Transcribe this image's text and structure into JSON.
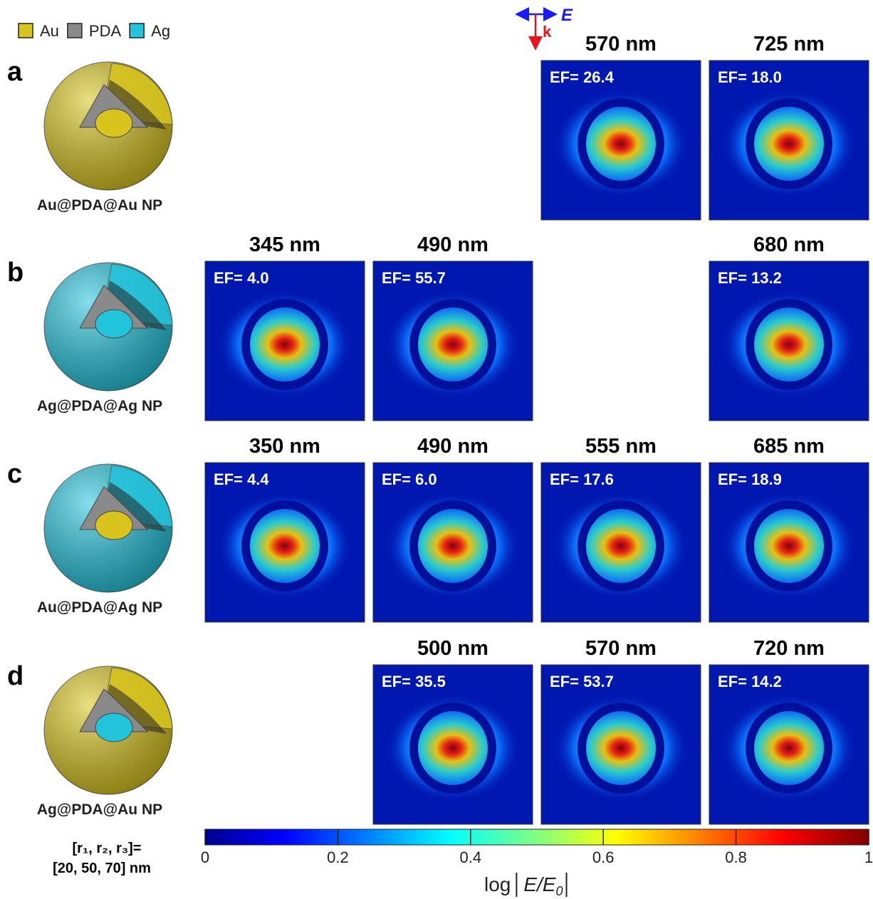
{
  "legend": [
    {
      "label": "Au",
      "color": "#d8c41c"
    },
    {
      "label": "PDA",
      "color": "#8a8a8a"
    },
    {
      "label": "Ag",
      "color": "#22c4dc"
    }
  ],
  "axes_indicator": {
    "field": "E",
    "wavevector": "k"
  },
  "rows": [
    {
      "letter": "a",
      "name": "Au@PDA@Au NP",
      "panels": [
        null,
        null,
        {
          "wavelength": "570 nm",
          "ef": "EF= 26.4"
        },
        {
          "wavelength": "725 nm",
          "ef": "EF= 18.0"
        }
      ]
    },
    {
      "letter": "b",
      "name": "Ag@PDA@Ag NP",
      "panels": [
        {
          "wavelength": "345 nm",
          "ef": "EF= 4.0"
        },
        {
          "wavelength": "490 nm",
          "ef": "EF= 55.7"
        },
        null,
        {
          "wavelength": "680 nm",
          "ef": "EF= 13.2"
        }
      ]
    },
    {
      "letter": "c",
      "name": "Au@PDA@Ag NP",
      "panels": [
        {
          "wavelength": "350 nm",
          "ef": "EF= 4.4"
        },
        {
          "wavelength": "490 nm",
          "ef": "EF= 6.0"
        },
        {
          "wavelength": "555 nm",
          "ef": "EF= 17.6"
        },
        {
          "wavelength": "685 nm",
          "ef": "EF= 18.9"
        }
      ]
    },
    {
      "letter": "d",
      "name": "Ag@PDA@Au NP",
      "panels": [
        null,
        {
          "wavelength": "500 nm",
          "ef": "EF= 35.5"
        },
        {
          "wavelength": "570 nm",
          "ef": "EF= 53.7"
        },
        {
          "wavelength": "720 nm",
          "ef": "EF= 14.2"
        }
      ]
    }
  ],
  "dimensions": {
    "symbols": "[r₁, r₂, r₃]=",
    "values": "[20, 50, 70] nm"
  },
  "colorbar": {
    "lim": [
      0,
      1
    ],
    "ticks": [
      0,
      0.2,
      0.4,
      0.6,
      0.8,
      1
    ],
    "label_prefix": "log",
    "label_variable": "E/E",
    "label_subscript": "0"
  }
}
